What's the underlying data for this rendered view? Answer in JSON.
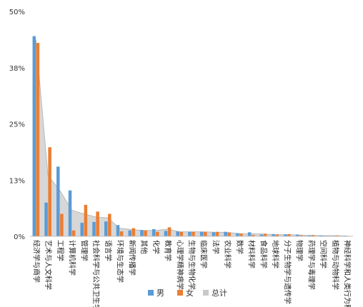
{
  "chart_data": {
    "type": "bar",
    "title": "",
    "xlabel": "",
    "ylabel": "",
    "ylim": [
      0,
      50
    ],
    "yticks": [
      "0%",
      "13%",
      "25%",
      "38%",
      "50%"
    ],
    "grid": false,
    "legend_position": "bottom",
    "categories": [
      "经济学与商学",
      "艺术与人文科学",
      "工程学",
      "计算机科学",
      "管理学",
      "社会科学与公共卫生学",
      "语言学",
      "环境与生态学",
      "新闻传播学",
      "其他",
      "化学",
      "教育学",
      "心理学精神病学",
      "生物与生物化学",
      "临床医学",
      "法学",
      "农业科学",
      "数学",
      "材料科学",
      "食品科学",
      "地球科学",
      "分子生物学与遗传学",
      "物理学",
      "药理学与毒理学",
      "空间科学",
      "植物与动物科学",
      "神经科学和人类行为科学"
    ],
    "series": [
      {
        "name": "男",
        "color": "#5b9bd5",
        "values": [
          44.5,
          7.5,
          15.5,
          10.2,
          3.0,
          3.2,
          3.3,
          2.5,
          1.3,
          1.4,
          1.6,
          1.2,
          1.1,
          1.0,
          1.0,
          0.9,
          1.0,
          0.7,
          0.9,
          0.4,
          0.5,
          0.4,
          0.4,
          0.2,
          0.2,
          0.1,
          0.1
        ]
      },
      {
        "name": "女",
        "color": "#ed7d31",
        "values": [
          43.0,
          19.8,
          5.0,
          1.3,
          7.0,
          5.5,
          5.0,
          1.1,
          1.8,
          1.3,
          1.0,
          2.0,
          1.0,
          1.0,
          1.0,
          1.0,
          0.8,
          0.6,
          0.3,
          0.6,
          0.4,
          0.5,
          0.2,
          0.3,
          0.1,
          0.2,
          0.1
        ]
      },
      {
        "name": "总计",
        "color": "#c9c9c9",
        "type": "area",
        "values": [
          43.7,
          13.6,
          10.2,
          5.8,
          5.0,
          4.3,
          4.1,
          1.8,
          1.5,
          1.3,
          1.3,
          1.6,
          1.0,
          1.0,
          1.0,
          0.9,
          0.9,
          0.6,
          0.6,
          0.5,
          0.4,
          0.4,
          0.3,
          0.2,
          0.15,
          0.15,
          0.1
        ]
      }
    ]
  }
}
